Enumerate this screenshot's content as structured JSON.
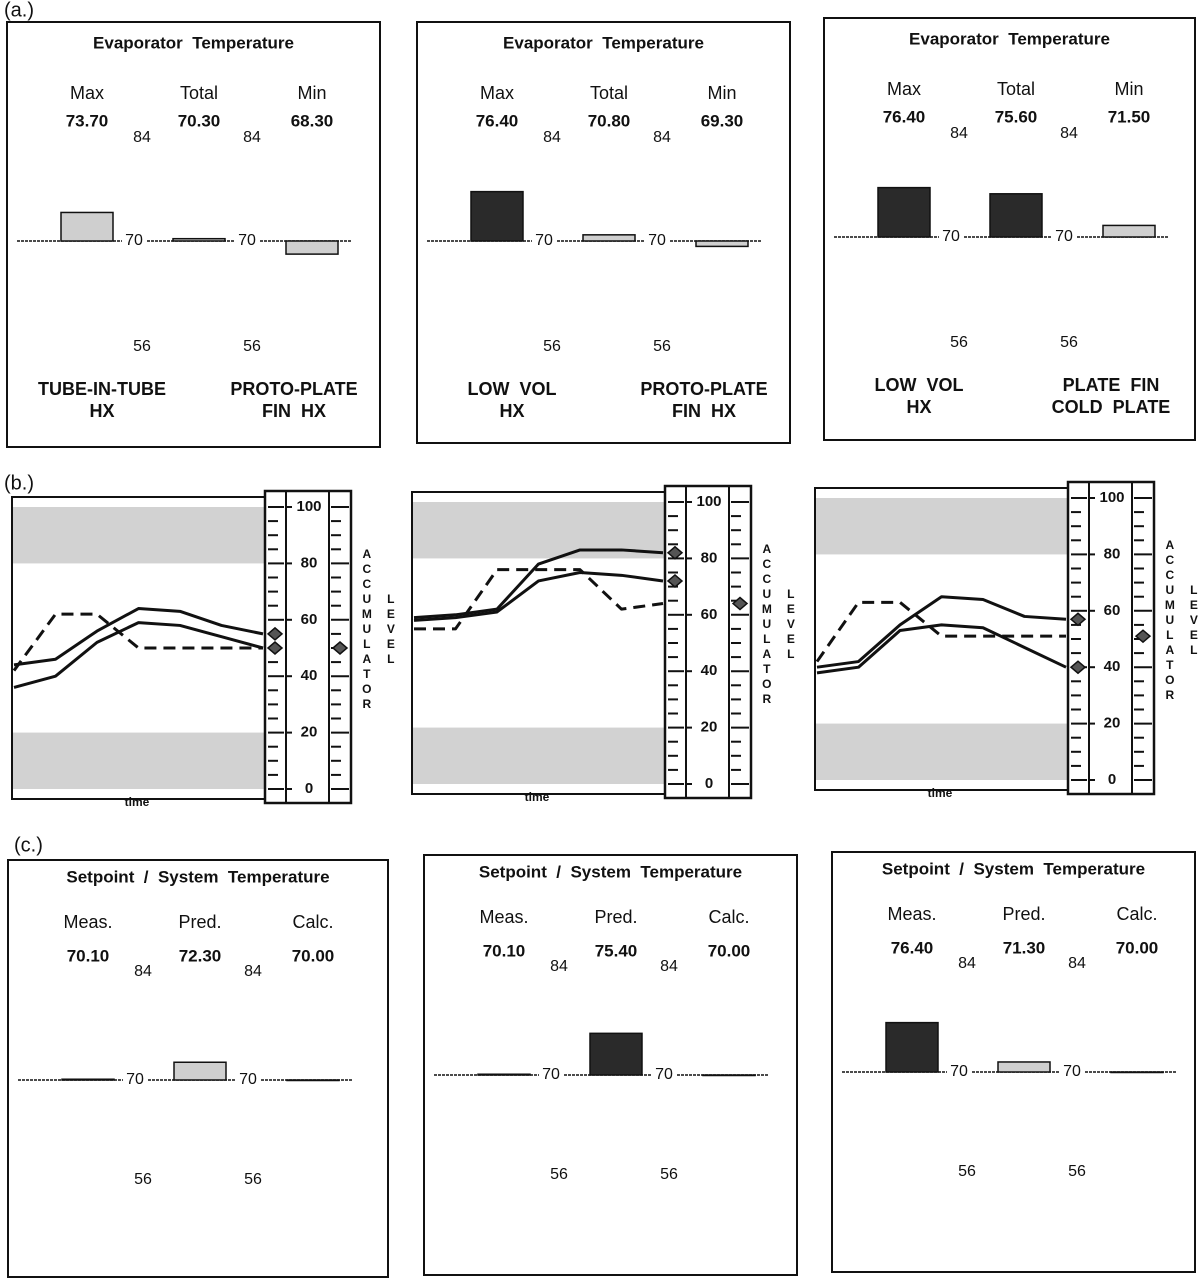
{
  "scale": {
    "max": 84,
    "center": 70,
    "min": 56
  },
  "section_a": {
    "label": "(a.)",
    "panels": [
      {
        "title": "Evaporator  Temperature",
        "columns": [
          "Max",
          "Total",
          "Min"
        ],
        "values": [
          73.7,
          70.3,
          68.3
        ],
        "value_labels": [
          "73.70",
          "70.30",
          "68.30"
        ],
        "colors": [
          "#cfcfcf",
          "#cfcfcf",
          "#cfcfcf"
        ],
        "names": [
          [
            "TUBE-IN-TUBE",
            "HX"
          ],
          [
            "PROTO-PLATE",
            "FIN  HX"
          ]
        ]
      },
      {
        "title": "Evaporator  Temperature",
        "columns": [
          "Max",
          "Total",
          "Min"
        ],
        "values": [
          76.4,
          70.8,
          69.3
        ],
        "value_labels": [
          "76.40",
          "70.80",
          "69.30"
        ],
        "colors": [
          "#2a2a2a",
          "#cfcfcf",
          "#cfcfcf"
        ],
        "names": [
          [
            "LOW  VOL",
            "HX"
          ],
          [
            "PROTO-PLATE",
            "FIN  HX"
          ]
        ]
      },
      {
        "title": "Evaporator  Temperature",
        "columns": [
          "Max",
          "Total",
          "Min"
        ],
        "values": [
          76.4,
          75.6,
          71.5
        ],
        "value_labels": [
          "76.40",
          "75.60",
          "71.50"
        ],
        "colors": [
          "#2a2a2a",
          "#2a2a2a",
          "#cfcfcf"
        ],
        "names": [
          [
            "LOW  VOL",
            "HX"
          ],
          [
            "PLATE  FIN",
            "COLD  PLATE"
          ]
        ]
      }
    ]
  },
  "section_b": {
    "label": "(b.)",
    "x_label": "time",
    "gauge_label": [
      "ACCUMULATOR",
      "LEVEL"
    ],
    "ylim": [
      0,
      100
    ],
    "yticks": [
      0,
      20,
      40,
      60,
      80,
      100
    ],
    "shaded_ranges": [
      [
        0,
        20
      ],
      [
        80,
        100
      ]
    ],
    "panels": [
      {
        "series": [
          {
            "style": "solid",
            "values": [
              44,
              46,
              56,
              64,
              63,
              58,
              55
            ]
          },
          {
            "style": "solid",
            "values": [
              36,
              40,
              52,
              59,
              58,
              54,
              50
            ]
          },
          {
            "style": "dashed",
            "values": [
              42,
              62,
              62,
              50,
              50,
              50,
              50
            ]
          }
        ]
      },
      {
        "series": [
          {
            "style": "solid",
            "values": [
              59,
              60,
              62,
              78,
              83,
              83,
              82
            ]
          },
          {
            "style": "solid",
            "values": [
              58,
              59,
              61,
              72,
              75,
              74,
              72
            ]
          },
          {
            "style": "dashed",
            "values": [
              55,
              55,
              76,
              76,
              76,
              62,
              64
            ]
          }
        ]
      },
      {
        "series": [
          {
            "style": "solid",
            "values": [
              40,
              42,
              55,
              65,
              64,
              58,
              57
            ]
          },
          {
            "style": "solid",
            "values": [
              38,
              40,
              53,
              55,
              54,
              47,
              40
            ]
          },
          {
            "style": "dashed",
            "values": [
              42,
              63,
              63,
              51,
              51,
              51,
              51
            ]
          }
        ]
      }
    ]
  },
  "section_c": {
    "label": "(c.)",
    "panels": [
      {
        "title": "Setpoint  /  System  Temperature",
        "columns": [
          "Meas.",
          "Pred.",
          "Calc."
        ],
        "values": [
          70.1,
          72.3,
          70.0
        ],
        "value_labels": [
          "70.10",
          "72.30",
          "70.00"
        ],
        "colors": [
          "#cfcfcf",
          "#cfcfcf",
          "#cfcfcf"
        ]
      },
      {
        "title": "Setpoint  /  System  Temperature",
        "columns": [
          "Meas.",
          "Pred.",
          "Calc."
        ],
        "values": [
          70.1,
          75.4,
          70.0
        ],
        "value_labels": [
          "70.10",
          "75.40",
          "70.00"
        ],
        "colors": [
          "#cfcfcf",
          "#2a2a2a",
          "#cfcfcf"
        ]
      },
      {
        "title": "Setpoint  /  System  Temperature",
        "columns": [
          "Meas.",
          "Pred.",
          "Calc."
        ],
        "values": [
          76.4,
          71.3,
          70.0
        ],
        "value_labels": [
          "76.40",
          "71.30",
          "70.00"
        ],
        "colors": [
          "#2a2a2a",
          "#cfcfcf",
          "#cfcfcf"
        ]
      }
    ]
  }
}
